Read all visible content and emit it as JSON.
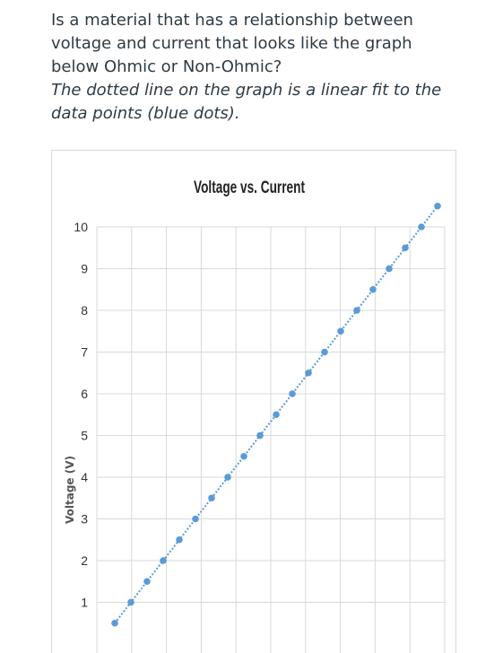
{
  "question": {
    "lines": [
      "Is a material that has a relationship between",
      "voltage and current that looks like the graph",
      "below Ohmic or Non-Ohmic?"
    ],
    "note_lines": [
      "The dotted line on the graph is a linear fit to the",
      "data points (blue dots)."
    ]
  },
  "chart_data": {
    "type": "scatter",
    "title": "Voltage vs. Current",
    "xlabel": "",
    "ylabel": "Voltage (V)",
    "ylim": [
      0,
      10
    ],
    "yticks": [
      1,
      2,
      3,
      4,
      5,
      6,
      7,
      8,
      9,
      10
    ],
    "grid": true,
    "trendline": "linear",
    "colors": {
      "points": "#5b9bd5",
      "trendline": "#5b9bd5",
      "grid": "#d9d9d9"
    },
    "series": [
      {
        "x": [
          0,
          1,
          2,
          3,
          4,
          5,
          6,
          7,
          8,
          9,
          10,
          11,
          12,
          13,
          14,
          15,
          16,
          17,
          18,
          19,
          20
        ],
        "values": [
          0.5,
          1.0,
          1.5,
          2.0,
          2.5,
          3.0,
          3.5,
          4.0,
          4.5,
          5.0,
          5.5,
          6.0,
          6.5,
          7.0,
          7.5,
          8.0,
          8.5,
          9.0,
          9.5,
          10.0,
          10.5
        ]
      }
    ]
  }
}
